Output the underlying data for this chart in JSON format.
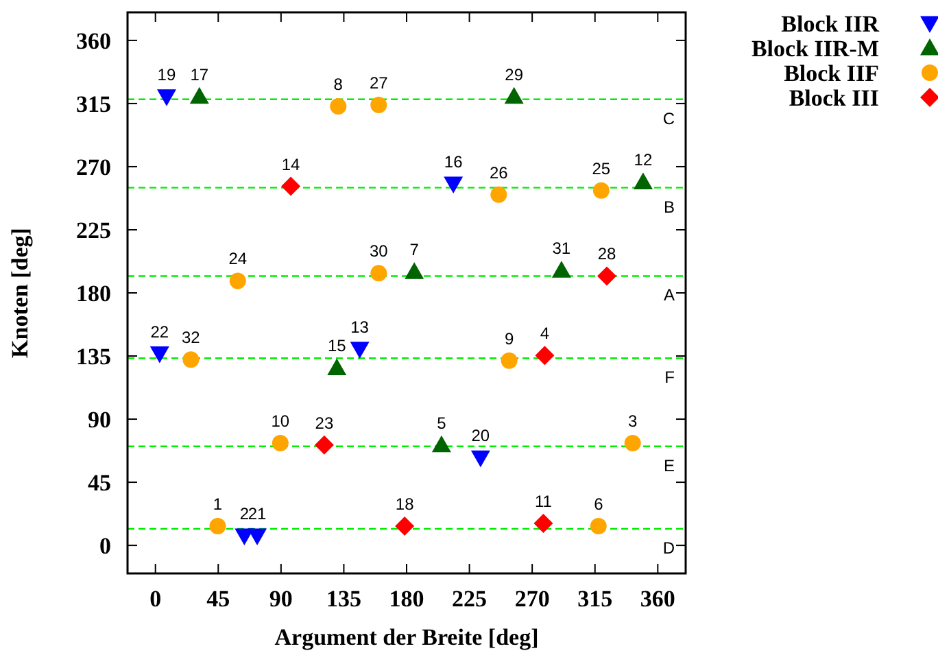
{
  "chart_data": {
    "type": "scatter",
    "xlabel": "Argument der Breite [deg]",
    "ylabel": "Knoten [deg]",
    "xlim": [
      -20,
      380
    ],
    "ylim": [
      -20,
      380
    ],
    "xticks": [
      0,
      45,
      90,
      135,
      180,
      225,
      270,
      315,
      360
    ],
    "yticks": [
      0,
      45,
      90,
      135,
      180,
      225,
      270,
      315,
      360
    ],
    "grid": false,
    "legend": "top right",
    "series": [
      {
        "name": "Block IIR",
        "color": "#0000ff",
        "marker": "triangle-down",
        "x": [
          8,
          213.5,
          3,
          146.4,
          233,
          63.7,
          72.9
        ],
        "values": [
          320,
          257.7,
          136.7,
          140,
          62.5,
          6.9,
          6.9
        ]
      },
      {
        "name": "Block IIR-M",
        "color": "#006400",
        "marker": "triangle",
        "x": [
          31.5,
          257,
          349.5,
          185.5,
          291,
          130,
          205
        ],
        "values": [
          320,
          320,
          259,
          195,
          196,
          126.5,
          71.6
        ]
      },
      {
        "name": "Block IIF",
        "color": "#ffa500",
        "marker": "circle",
        "x": [
          131,
          160,
          246,
          319.5,
          59,
          160,
          25.4,
          253.5,
          89.5,
          342,
          44.6,
          317.5
        ],
        "values": [
          313,
          314,
          250,
          253,
          188.6,
          194,
          132.4,
          131.7,
          72.9,
          72.9,
          13.7,
          13.7
        ]
      },
      {
        "name": "Block III",
        "color": "#ff0000",
        "marker": "diamond",
        "x": [
          97,
          323.5,
          279,
          121,
          178.6,
          278
        ],
        "values": [
          256,
          192,
          135.4,
          71.6,
          13.7,
          15.7
        ]
      }
    ],
    "ref_lines": [
      {
        "axis": "y",
        "value": 318,
        "label": "C",
        "color": "#00ee00",
        "line_style": "dashed"
      },
      {
        "axis": "y",
        "value": 255,
        "label": "B",
        "color": "#00ee00",
        "line_style": "dashed"
      },
      {
        "axis": "y",
        "value": 192,
        "label": "A",
        "color": "#00ee00",
        "line_style": "dashed"
      },
      {
        "axis": "y",
        "value": 133.4,
        "label": "F",
        "color": "#00ee00",
        "line_style": "dashed"
      },
      {
        "axis": "y",
        "value": 70.6,
        "label": "E",
        "color": "#00ee00",
        "line_style": "dashed"
      },
      {
        "axis": "y",
        "value": 11.8,
        "label": "D",
        "color": "#00ee00",
        "line_style": "dashed"
      }
    ],
    "annotations": [
      {
        "text": "19",
        "x": 8,
        "y": 320
      },
      {
        "text": "16",
        "x": 213.5,
        "y": 257.7
      },
      {
        "text": "22",
        "x": 3,
        "y": 136.7
      },
      {
        "text": "13",
        "x": 146.4,
        "y": 140
      },
      {
        "text": "20",
        "x": 233,
        "y": 62.5
      },
      {
        "text": "2",
        "x": 63.7,
        "y": 6.9
      },
      {
        "text": "21",
        "x": 72.9,
        "y": 6.9
      },
      {
        "text": "17",
        "x": 31.5,
        "y": 320
      },
      {
        "text": "29",
        "x": 257,
        "y": 320
      },
      {
        "text": "12",
        "x": 349.5,
        "y": 259
      },
      {
        "text": "7",
        "x": 185.5,
        "y": 195
      },
      {
        "text": "31",
        "x": 291,
        "y": 196
      },
      {
        "text": "15",
        "x": 130,
        "y": 126.5
      },
      {
        "text": "5",
        "x": 205,
        "y": 71.6
      },
      {
        "text": "8",
        "x": 131,
        "y": 313
      },
      {
        "text": "27",
        "x": 160,
        "y": 314
      },
      {
        "text": "26",
        "x": 246,
        "y": 250
      },
      {
        "text": "25",
        "x": 319.5,
        "y": 253
      },
      {
        "text": "24",
        "x": 59,
        "y": 188.6
      },
      {
        "text": "30",
        "x": 160,
        "y": 194
      },
      {
        "text": "32",
        "x": 25.4,
        "y": 132.4
      },
      {
        "text": "9",
        "x": 253.5,
        "y": 131.7
      },
      {
        "text": "10",
        "x": 89.5,
        "y": 72.9
      },
      {
        "text": "3",
        "x": 342,
        "y": 72.9
      },
      {
        "text": "1",
        "x": 44.6,
        "y": 13.7
      },
      {
        "text": "6",
        "x": 317.5,
        "y": 13.7
      },
      {
        "text": "14",
        "x": 97,
        "y": 256
      },
      {
        "text": "28",
        "x": 323.5,
        "y": 192
      },
      {
        "text": "4",
        "x": 279,
        "y": 135.4
      },
      {
        "text": "23",
        "x": 121,
        "y": 71.6
      },
      {
        "text": "18",
        "x": 178.6,
        "y": 13.7
      },
      {
        "text": "11",
        "x": 278,
        "y": 15.7
      }
    ]
  }
}
